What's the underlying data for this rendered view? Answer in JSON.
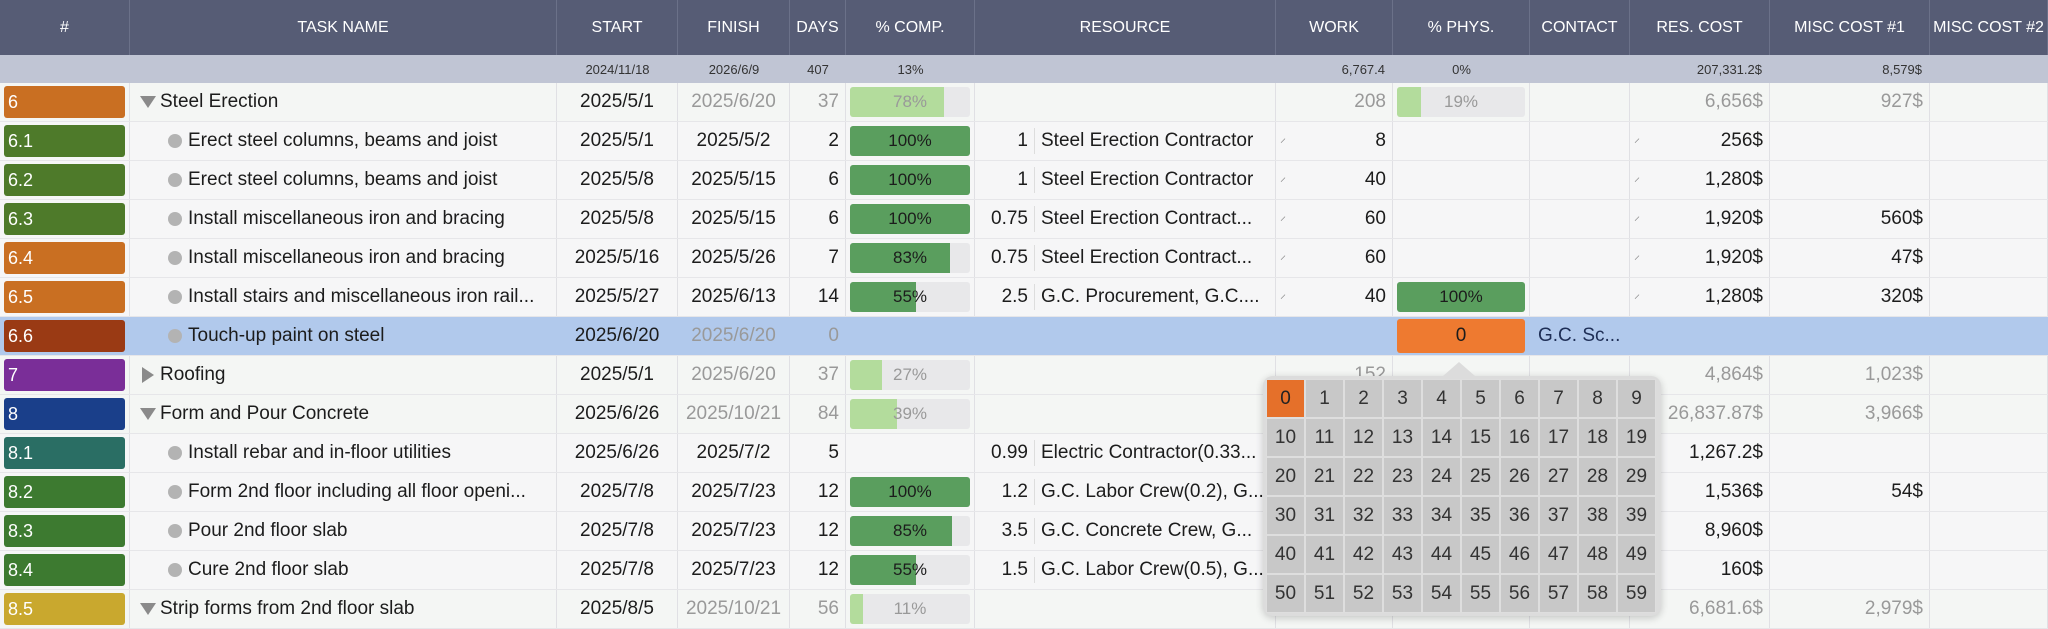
{
  "columns": [
    "#",
    "TASK NAME",
    "START",
    "FINISH",
    "DAYS",
    "% COMP.",
    "RESOURCE",
    "WORK",
    "% PHYS.",
    "CONTACT",
    "RES. COST",
    "MISC COST #1",
    "MISC COST #2"
  ],
  "summary": {
    "start": "2024/11/18",
    "finish": "2026/6/9",
    "days": "407",
    "comp": "13%",
    "work": "6,767.4",
    "phys": "0%",
    "res_cost": "207,331.2$",
    "misc1": "8,579$"
  },
  "colors": {
    "bar_done": "#5a9e5e",
    "bar_summary": "#b3dc9c",
    "selected_row": "#b1c9ec",
    "editing": "#ee7a30"
  },
  "rows": [
    {
      "id": "6",
      "color": "#c96f22",
      "type": "open",
      "name": "Steel Erection",
      "start": "2025/5/1",
      "finish": "2025/6/20",
      "days": "37",
      "comp": 78,
      "comp_label": "78%",
      "work": "208",
      "phys": 19,
      "phys_label": "19%",
      "res_cost": "6,656$",
      "misc1": "927$",
      "summary": true
    },
    {
      "id": "6.1",
      "color": "#4e7a2a",
      "type": "task",
      "name": "Erect steel columns, beams and joist",
      "start": "2025/5/1",
      "finish": "2025/5/2",
      "days": "2",
      "comp": 100,
      "comp_label": "100%",
      "qty": "1",
      "resource": "Steel Erection Contractor",
      "work": "8",
      "res_cost": "256$"
    },
    {
      "id": "6.2",
      "color": "#4e7a2a",
      "type": "task",
      "name": "Erect steel columns, beams and joist",
      "start": "2025/5/8",
      "finish": "2025/5/15",
      "days": "6",
      "comp": 100,
      "comp_label": "100%",
      "qty": "1",
      "resource": "Steel Erection Contractor",
      "work": "40",
      "res_cost": "1,280$"
    },
    {
      "id": "6.3",
      "color": "#4e7a2a",
      "type": "task",
      "name": "Install miscellaneous iron and bracing",
      "start": "2025/5/8",
      "finish": "2025/5/15",
      "days": "6",
      "comp": 100,
      "comp_label": "100%",
      "qty": "0.75",
      "resource": "Steel Erection Contract...",
      "work": "60",
      "res_cost": "1,920$",
      "misc1": "560$"
    },
    {
      "id": "6.4",
      "color": "#c96f22",
      "type": "task",
      "name": "Install miscellaneous iron and bracing",
      "start": "2025/5/16",
      "finish": "2025/5/26",
      "days": "7",
      "comp": 83,
      "comp_label": "83%",
      "qty": "0.75",
      "resource": "Steel Erection Contract...",
      "work": "60",
      "res_cost": "1,920$",
      "misc1": "47$"
    },
    {
      "id": "6.5",
      "color": "#c96f22",
      "type": "task",
      "name": "Install stairs and miscellaneous iron rail...",
      "start": "2025/5/27",
      "finish": "2025/6/13",
      "days": "14",
      "comp": 55,
      "comp_label": "55%",
      "qty": "2.5",
      "resource": "G.C. Procurement, G.C....",
      "work": "40",
      "phys": 100,
      "phys_label": "100%",
      "res_cost": "1,280$",
      "misc1": "320$"
    },
    {
      "id": "6.6",
      "color": "#9a3a14",
      "type": "task",
      "name": "Touch-up paint on steel",
      "start": "2025/6/20",
      "finish": "2025/6/20",
      "days": "0",
      "editing": "0",
      "contact": "G.C. Sc...",
      "selected": true
    },
    {
      "id": "7",
      "color": "#7a2e98",
      "type": "closed",
      "name": "Roofing",
      "start": "2025/5/1",
      "finish": "2025/6/20",
      "days": "37",
      "comp": 27,
      "comp_label": "27%",
      "work": "152",
      "res_cost": "4,864$",
      "misc1": "1,023$",
      "summary": true
    },
    {
      "id": "8",
      "color": "#1a3f8a",
      "type": "open",
      "name": "Form and Pour Concrete",
      "start": "2025/6/26",
      "finish": "2025/10/21",
      "days": "84",
      "comp": 39,
      "comp_label": "39%",
      "res_cost": "26,837.87$",
      "misc1": "3,966$",
      "summary": true
    },
    {
      "id": "8.1",
      "color": "#2a6e64",
      "type": "task",
      "name": "Install rebar and in-floor utilities",
      "start": "2025/6/26",
      "finish": "2025/7/2",
      "days": "5",
      "qty": "0.99",
      "resource": "Electric Contractor(0.33...",
      "res_cost": "1,267.2$"
    },
    {
      "id": "8.2",
      "color": "#3d7a30",
      "type": "task",
      "name": "Form 2nd floor including all floor openi...",
      "start": "2025/7/8",
      "finish": "2025/7/23",
      "days": "12",
      "comp": 100,
      "comp_label": "100%",
      "qty": "1.2",
      "resource": "G.C. Labor Crew(0.2), G...",
      "res_cost": "1,536$",
      "misc1": "54$"
    },
    {
      "id": "8.3",
      "color": "#3d7a30",
      "type": "task",
      "name": "Pour 2nd floor slab",
      "start": "2025/7/8",
      "finish": "2025/7/23",
      "days": "12",
      "comp": 85,
      "comp_label": "85%",
      "qty": "3.5",
      "resource": "G.C. Concrete Crew, G...",
      "res_cost": "8,960$"
    },
    {
      "id": "8.4",
      "color": "#3d7a30",
      "type": "task",
      "name": "Cure 2nd floor slab",
      "start": "2025/7/8",
      "finish": "2025/7/23",
      "days": "12",
      "comp": 55,
      "comp_label": "55%",
      "qty": "1.5",
      "resource": "G.C. Labor Crew(0.5), G...",
      "res_cost": "160$"
    },
    {
      "id": "8.5",
      "color": "#c9a82e",
      "type": "open",
      "name": "Strip forms from 2nd floor slab",
      "start": "2025/8/5",
      "finish": "2025/10/21",
      "days": "56",
      "comp": 11,
      "comp_label": "11%",
      "res_cost": "6,681.6$",
      "misc1": "2,979$",
      "summary": true
    }
  ],
  "picker": {
    "selected": "0",
    "values": [
      "0",
      "1",
      "2",
      "3",
      "4",
      "5",
      "6",
      "7",
      "8",
      "9",
      "10",
      "11",
      "12",
      "13",
      "14",
      "15",
      "16",
      "17",
      "18",
      "19",
      "20",
      "21",
      "22",
      "23",
      "24",
      "25",
      "26",
      "27",
      "28",
      "29",
      "30",
      "31",
      "32",
      "33",
      "34",
      "35",
      "36",
      "37",
      "38",
      "39",
      "40",
      "41",
      "42",
      "43",
      "44",
      "45",
      "46",
      "47",
      "48",
      "49",
      "50",
      "51",
      "52",
      "53",
      "54",
      "55",
      "56",
      "57",
      "58",
      "59"
    ]
  }
}
